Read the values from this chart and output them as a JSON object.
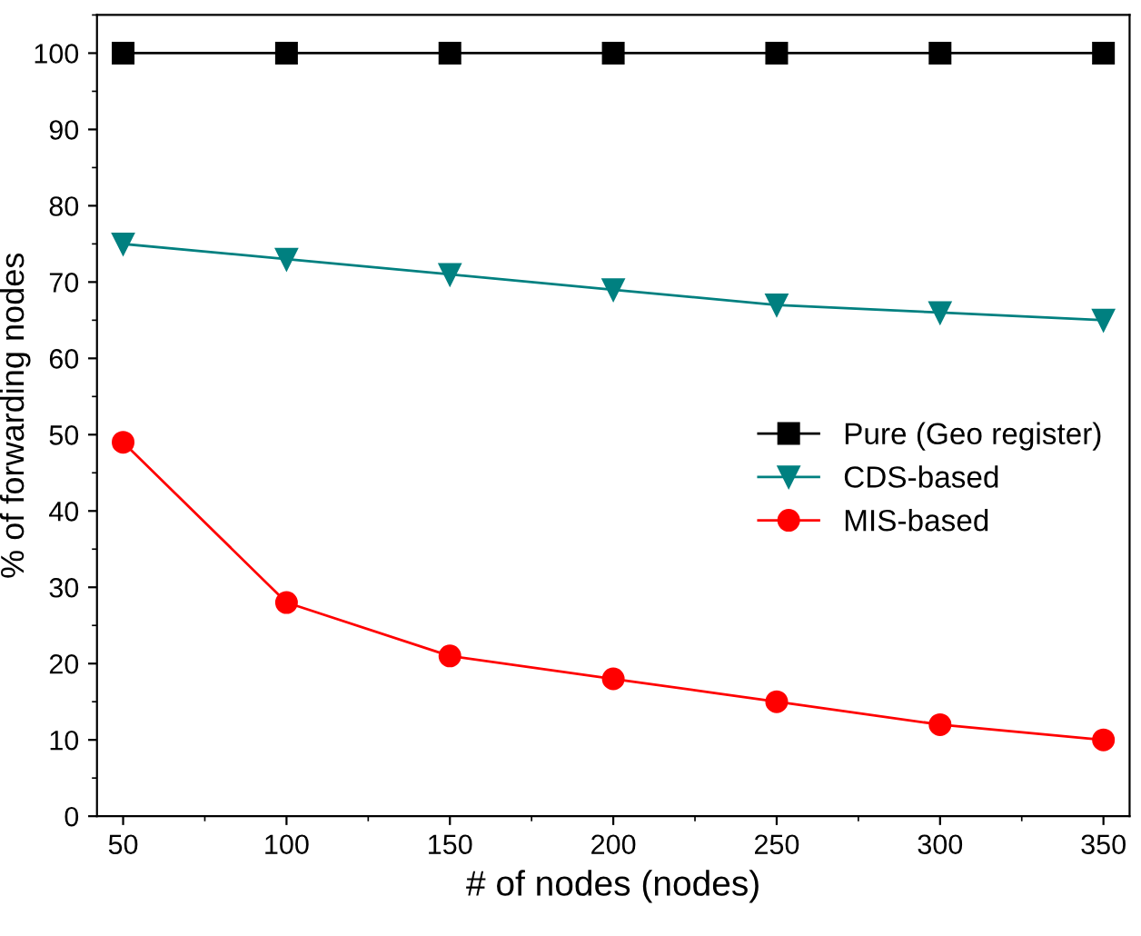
{
  "chart_data": {
    "type": "line",
    "xlabel": "# of nodes (nodes)",
    "ylabel": "% of forwarding nodes",
    "x": [
      50,
      100,
      150,
      200,
      250,
      300,
      350
    ],
    "series": [
      {
        "name": "Pure (Geo register)",
        "color": "#000000",
        "marker": "square",
        "values": [
          100,
          100,
          100,
          100,
          100,
          100,
          100
        ]
      },
      {
        "name": "CDS-based",
        "color": "#008080",
        "marker": "triangle_down",
        "values": [
          75,
          73,
          71,
          69,
          67,
          66,
          65
        ]
      },
      {
        "name": "MIS-based",
        "color": "#ff0000",
        "marker": "circle",
        "values": [
          49,
          28,
          21,
          18,
          15,
          12,
          10
        ]
      }
    ],
    "xlim": [
      42,
      358
    ],
    "ylim": [
      0,
      105
    ],
    "xticks": [
      50,
      100,
      150,
      200,
      250,
      300,
      350
    ],
    "yticks": [
      0,
      10,
      20,
      30,
      40,
      50,
      60,
      70,
      80,
      90,
      100
    ],
    "grid": false,
    "legend": "right",
    "line_style": "solid"
  }
}
